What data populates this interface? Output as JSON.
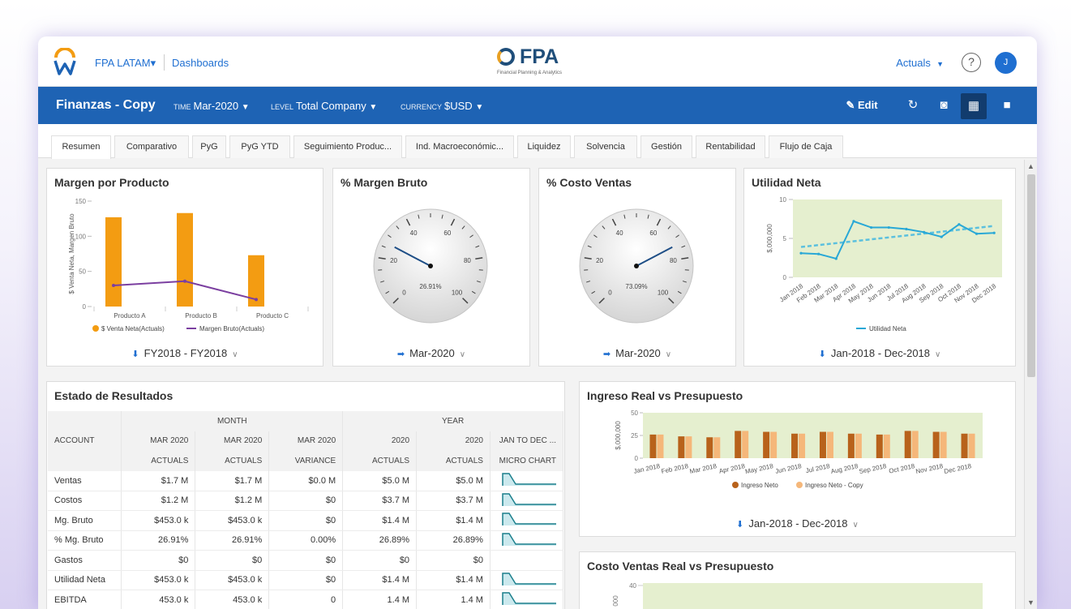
{
  "topbar": {
    "org": "FPA LATAM",
    "org_caret": "▾",
    "dashboards_link": "Dashboards",
    "brand": "FPA",
    "brand_sub": "Financial Planning & Analytics",
    "actuals_menu": "Actuals",
    "actuals_caret": "▼",
    "help_icon": "?",
    "avatar_initial": "J"
  },
  "toolbar": {
    "page_title": "Finanzas - Copy",
    "time_label": "TIME",
    "time_value": "Mar-2020",
    "level_label": "LEVEL",
    "level_value": "Total Company",
    "currency_label": "CURRENCY",
    "currency_value": "$USD",
    "caret": "▼",
    "edit_label": "Edit",
    "edit_icon": "✎",
    "refresh_icon": "↻",
    "camera_icon": "◙",
    "grid_icon": "▦",
    "video_icon": "■"
  },
  "tabs": [
    "Resumen",
    "Comparativo",
    "PyG",
    "PyG YTD",
    "Seguimiento Produc...",
    "Ind. Macroeconómic...",
    "Liquidez",
    "Solvencia",
    "Gestión",
    "Rentabilidad",
    "Flujo de Caja"
  ],
  "cards": {
    "margen_producto": {
      "title": "Margen por Producto",
      "filter": "FY2018 - FY2018",
      "chart_data": {
        "type": "bar",
        "categories": [
          "Producto A",
          "Producto B",
          "Producto C"
        ],
        "series": [
          {
            "name": "$ Venta Neta(Actuals)",
            "kind": "bar",
            "color": "#f39c12",
            "values": [
              127,
              133,
              73
            ]
          },
          {
            "name": "Margen Bruto(Actuals)",
            "kind": "line",
            "color": "#7b3fa0",
            "values": [
              30,
              36,
              10
            ]
          }
        ],
        "ylabel": "$ Venta Neta, Margen Bruto",
        "ylim": [
          0,
          150
        ],
        "yticks": [
          0,
          50,
          100,
          150
        ]
      }
    },
    "margen_bruto": {
      "title": "% Margen Bruto",
      "value_label": "26.91%",
      "value": 26.91,
      "ticks": [
        "0",
        "20",
        "40",
        "60",
        "80",
        "100"
      ],
      "filter": "Mar-2020"
    },
    "costo_ventas": {
      "title": "% Costo Ventas",
      "value_label": "73.09%",
      "value": 73.09,
      "ticks": [
        "0",
        "20",
        "40",
        "60",
        "80",
        "100"
      ],
      "filter": "Mar-2020"
    },
    "utilidad_neta": {
      "title": "Utilidad Neta",
      "filter": "Jan-2018 - Dec-2018",
      "chart_data": {
        "type": "line",
        "x": [
          "Jan 2018",
          "Feb 2018",
          "Mar 2018",
          "Apr 2018",
          "May 2018",
          "Jun 2018",
          "Jul 2018",
          "Aug 2018",
          "Sep 2018",
          "Oct 2018",
          "Nov 2018",
          "Dec 2018"
        ],
        "series": [
          {
            "name": "Utilidad Neta",
            "color": "#29a8d6",
            "values": [
              3.1,
              3.0,
              2.4,
              7.2,
              6.4,
              6.4,
              6.2,
              5.8,
              5.2,
              6.8,
              5.6,
              5.7
            ]
          }
        ],
        "trend": [
          3.9,
          6.6
        ],
        "ylabel": "$,000,000",
        "ylim": [
          0,
          10
        ],
        "yticks": [
          0,
          5,
          10
        ]
      }
    },
    "estado": {
      "title": "Estado de Resultados",
      "group_headers": [
        "MONTH",
        "YEAR"
      ],
      "columns": [
        {
          "top": "ACCOUNT",
          "bottom": ""
        },
        {
          "top": "MAR 2020",
          "bottom": "ACTUALS"
        },
        {
          "top": "MAR 2020",
          "bottom": "ACTUALS"
        },
        {
          "top": "MAR 2020",
          "bottom": "VARIANCE"
        },
        {
          "top": "2020",
          "bottom": "ACTUALS"
        },
        {
          "top": "2020",
          "bottom": "ACTUALS"
        },
        {
          "top": "JAN TO DEC ...",
          "bottom": "MICRO CHART"
        }
      ],
      "rows": [
        {
          "account": "Ventas",
          "values": [
            "$1.7 M",
            "$1.7 M",
            "$0.0 M",
            "$5.0 M",
            "$5.0 M"
          ],
          "micro": true
        },
        {
          "account": "Costos",
          "values": [
            "$1.2 M",
            "$1.2 M",
            "$0",
            "$3.7 M",
            "$3.7 M"
          ],
          "micro": true
        },
        {
          "account": "Mg. Bruto",
          "values": [
            "$453.0 k",
            "$453.0 k",
            "$0",
            "$1.4 M",
            "$1.4 M"
          ],
          "micro": true
        },
        {
          "account": "% Mg. Bruto",
          "values": [
            "26.91%",
            "26.91%",
            "0.00%",
            "26.89%",
            "26.89%"
          ],
          "micro": true
        },
        {
          "account": "Gastos",
          "values": [
            "$0",
            "$0",
            "$0",
            "$0",
            "$0"
          ],
          "micro": false
        },
        {
          "account": "Utilidad Neta",
          "values": [
            "$453.0 k",
            "$453.0 k",
            "$0",
            "$1.4 M",
            "$1.4 M"
          ],
          "micro": true
        },
        {
          "account": "EBITDA",
          "values": [
            "453.0 k",
            "453.0 k",
            "0",
            "1.4 M",
            "1.4 M"
          ],
          "micro": true
        }
      ]
    },
    "ingreso": {
      "title": "Ingreso Real vs Presupuesto",
      "filter": "Jan-2018 - Dec-2018",
      "chart_data": {
        "type": "bar",
        "categories": [
          "Jan 2018",
          "Feb 2018",
          "Mar 2018",
          "Apr 2018",
          "May 2018",
          "Jun 2018",
          "Jul 2018",
          "Aug 2018",
          "Sep 2018",
          "Oct 2018",
          "Nov 2018",
          "Dec 2018"
        ],
        "series": [
          {
            "name": "Ingreso Neto",
            "color": "#b8621b",
            "values": [
              26,
              24,
              23,
              30,
              29,
              27,
              29,
              27,
              26,
              30,
              29,
              27
            ]
          },
          {
            "name": "Ingreso Neto - Copy",
            "color": "#f5b77a",
            "values": [
              26,
              24,
              23,
              30,
              29,
              27,
              29,
              27,
              26,
              30,
              29,
              27
            ]
          }
        ],
        "ylabel": "$,000,000",
        "ylim": [
          0,
          50
        ],
        "yticks": [
          0,
          25,
          50
        ]
      }
    },
    "costo_real": {
      "title": "Costo Ventas Real vs Presupuesto",
      "ytick_top": "40",
      "ylabel": "000"
    }
  }
}
